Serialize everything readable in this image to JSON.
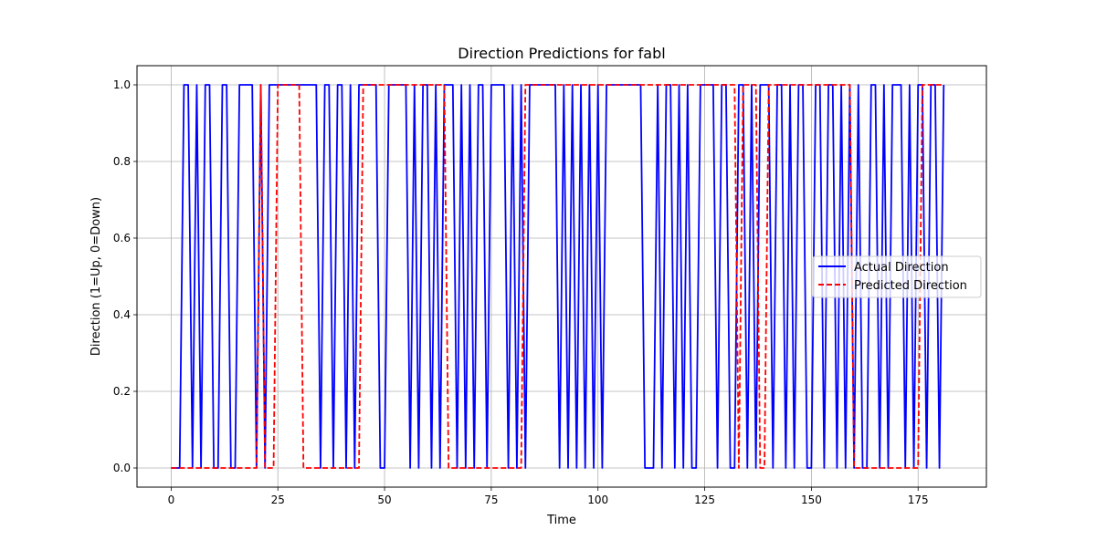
{
  "chart_data": {
    "type": "line",
    "title": "Direction Predictions for fabl",
    "xlabel": "Time",
    "ylabel": "Direction (1=Up, 0=Down)",
    "xlim": [
      -8,
      191
    ],
    "ylim": [
      -0.05,
      1.05
    ],
    "xticks": [
      0,
      25,
      50,
      75,
      100,
      125,
      150,
      175
    ],
    "xtick_labels": [
      "0",
      "25",
      "50",
      "75",
      "100",
      "125",
      "150",
      "175"
    ],
    "yticks": [
      0.0,
      0.2,
      0.4,
      0.6,
      0.8,
      1.0
    ],
    "ytick_labels": [
      "0.0",
      "0.2",
      "0.4",
      "0.6",
      "0.8",
      "1.0"
    ],
    "grid": true,
    "legend_position": "center-right",
    "x": [
      0,
      1,
      2,
      3,
      4,
      5,
      6,
      7,
      8,
      9,
      10,
      11,
      12,
      13,
      14,
      15,
      16,
      17,
      18,
      19,
      20,
      21,
      22,
      23,
      24,
      25,
      26,
      27,
      28,
      29,
      30,
      31,
      32,
      33,
      34,
      35,
      36,
      37,
      38,
      39,
      40,
      41,
      42,
      43,
      44,
      45,
      46,
      47,
      48,
      49,
      50,
      51,
      52,
      53,
      54,
      55,
      56,
      57,
      58,
      59,
      60,
      61,
      62,
      63,
      64,
      65,
      66,
      67,
      68,
      69,
      70,
      71,
      72,
      73,
      74,
      75,
      76,
      77,
      78,
      79,
      80,
      81,
      82,
      83,
      84,
      85,
      86,
      87,
      88,
      89,
      90,
      91,
      92,
      93,
      94,
      95,
      96,
      97,
      98,
      99,
      100,
      101,
      102,
      103,
      104,
      105,
      106,
      107,
      108,
      109,
      110,
      111,
      112,
      113,
      114,
      115,
      116,
      117,
      118,
      119,
      120,
      121,
      122,
      123,
      124,
      125,
      126,
      127,
      128,
      129,
      130,
      131,
      132,
      133,
      134,
      135,
      136,
      137,
      138,
      139,
      140,
      141,
      142,
      143,
      144,
      145,
      146,
      147,
      148,
      149,
      150,
      151,
      152,
      153,
      154,
      155,
      156,
      157,
      158,
      159,
      160,
      161,
      162,
      163,
      164,
      165,
      166,
      167,
      168,
      169,
      170,
      171,
      172,
      173,
      174,
      175,
      176,
      177,
      178,
      179,
      180,
      181
    ],
    "series": [
      {
        "name": "Actual Direction",
        "color": "#0000ff",
        "style": "solid",
        "values": [
          0,
          0,
          0,
          1,
          1,
          0,
          1,
          0,
          1,
          1,
          0,
          0,
          1,
          1,
          0,
          0,
          1,
          1,
          1,
          1,
          0,
          1,
          0,
          1,
          1,
          1,
          1,
          1,
          1,
          1,
          1,
          1,
          1,
          1,
          1,
          0,
          1,
          1,
          0,
          1,
          1,
          0,
          1,
          0,
          1,
          1,
          1,
          1,
          1,
          0,
          0,
          1,
          1,
          1,
          1,
          1,
          0,
          1,
          0,
          1,
          1,
          0,
          1,
          0,
          1,
          1,
          1,
          0,
          1,
          0,
          1,
          0,
          1,
          1,
          0,
          1,
          1,
          1,
          1,
          0,
          1,
          0,
          1,
          0,
          1,
          1,
          1,
          1,
          1,
          1,
          1,
          0,
          1,
          0,
          1,
          0,
          1,
          0,
          1,
          0,
          1,
          0,
          1,
          1,
          1,
          1,
          1,
          1,
          1,
          1,
          1,
          0,
          0,
          0,
          1,
          0,
          1,
          1,
          0,
          1,
          0,
          1,
          0,
          0,
          1,
          1,
          1,
          1,
          0,
          1,
          1,
          0,
          0,
          1,
          1,
          0,
          1,
          0,
          1,
          1,
          1,
          0,
          1,
          1,
          0,
          1,
          0,
          1,
          1,
          0,
          0,
          1,
          1,
          0,
          1,
          1,
          0,
          1,
          0,
          1,
          0,
          1,
          0,
          0,
          1,
          1,
          0,
          1,
          0,
          1,
          1,
          1,
          0,
          1,
          0,
          1,
          1,
          0,
          1,
          1,
          0,
          1
        ]
      },
      {
        "name": "Predicted Direction",
        "color": "#ff0000",
        "style": "dashed",
        "values": [
          0,
          0,
          0,
          0,
          0,
          0,
          0,
          0,
          0,
          0,
          0,
          0,
          0,
          0,
          0,
          0,
          0,
          0,
          0,
          0,
          0,
          1,
          0,
          0,
          0,
          1,
          1,
          1,
          1,
          1,
          1,
          0,
          0,
          0,
          0,
          0,
          0,
          0,
          0,
          0,
          0,
          0,
          0,
          0,
          0,
          1,
          1,
          1,
          1,
          1,
          1,
          1,
          1,
          1,
          1,
          1,
          1,
          1,
          1,
          1,
          1,
          1,
          1,
          1,
          1,
          0,
          0,
          0,
          0,
          0,
          0,
          0,
          0,
          0,
          0,
          0,
          0,
          0,
          0,
          0,
          0,
          0,
          0,
          1,
          1,
          1,
          1,
          1,
          1,
          1,
          1,
          1,
          1,
          1,
          1,
          1,
          1,
          1,
          1,
          1,
          1,
          1,
          1,
          1,
          1,
          1,
          1,
          1,
          1,
          1,
          1,
          1,
          1,
          1,
          1,
          1,
          1,
          1,
          1,
          1,
          1,
          1,
          1,
          1,
          1,
          1,
          1,
          1,
          1,
          1,
          1,
          1,
          1,
          0,
          1,
          1,
          1,
          1,
          0,
          0,
          1,
          1,
          1,
          1,
          1,
          1,
          1,
          1,
          1,
          1,
          1,
          1,
          1,
          1,
          1,
          1,
          1,
          1,
          1,
          1,
          0,
          0,
          0,
          0,
          0,
          0,
          0,
          0,
          0,
          0,
          0,
          0,
          0,
          0,
          0,
          0,
          1,
          1,
          1,
          1,
          1,
          1
        ]
      }
    ]
  }
}
